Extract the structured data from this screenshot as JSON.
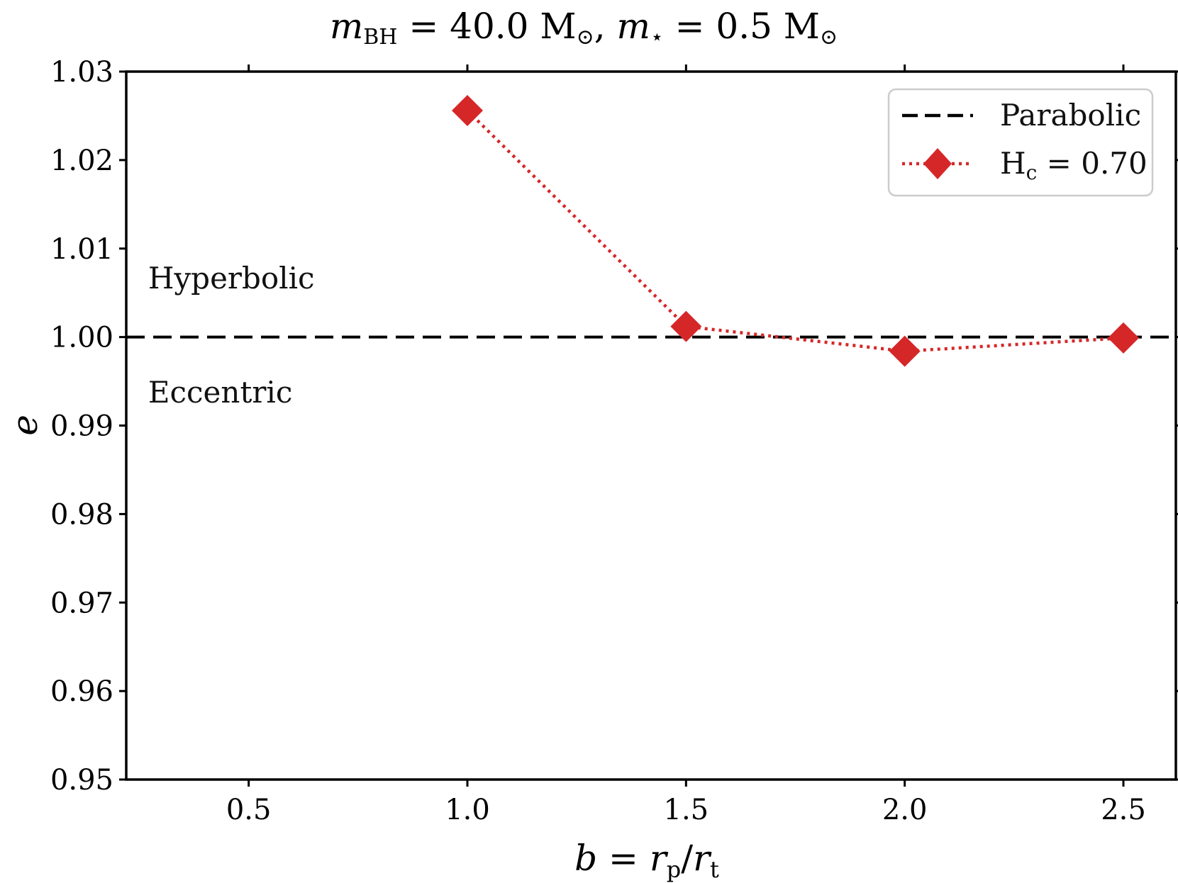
{
  "chart_data": {
    "type": "line",
    "title": {
      "m1": "m",
      "m1_sub": "BH",
      "eq1": " = 40.0 M",
      "sun1": "⊙",
      "comma": ", ",
      "m2": "m",
      "m2_sub": "⋆",
      "eq2": " = 0.5 M",
      "sun2": "⊙"
    },
    "xlabel": {
      "b": "b",
      "eq": " = ",
      "r1": "r",
      "r1_sub": "p",
      "slash": "/",
      "r2": "r",
      "r2_sub": "t"
    },
    "ylabel": "e",
    "xlim": [
      0.22,
      2.62
    ],
    "ylim": [
      0.95,
      1.03
    ],
    "x_ticks": [
      0.5,
      1.0,
      1.5,
      2.0,
      2.5
    ],
    "x_tick_labels": [
      "0.5",
      "1.0",
      "1.5",
      "2.0",
      "2.5"
    ],
    "y_ticks": [
      0.95,
      0.96,
      0.97,
      0.98,
      0.99,
      1.0,
      1.01,
      1.02,
      1.03
    ],
    "y_tick_labels": [
      "0.95",
      "0.96",
      "0.97",
      "0.98",
      "0.99",
      "1.00",
      "1.01",
      "1.02",
      "1.03"
    ],
    "reference_line": {
      "name": "Parabolic",
      "y": 1.0,
      "style": "dashed",
      "color": "#000000"
    },
    "series": [
      {
        "name": "H_c = 0.70",
        "color": "#d62728",
        "marker": "diamond",
        "linestyle": "dotted",
        "x": [
          1.0,
          1.5,
          2.0,
          2.5
        ],
        "y": [
          1.0256,
          1.0012,
          0.9984,
          0.9999
        ]
      }
    ],
    "annotations": [
      {
        "text": "Hyperbolic",
        "x": 0.27,
        "y": 1.0055
      },
      {
        "text": "Eccentric",
        "x": 0.27,
        "y": 0.9926
      }
    ],
    "legend": {
      "position": "top-right",
      "parabolic_label": "Parabolic",
      "series_label_H": "H",
      "series_label_sub": "c",
      "series_label_rest": " = 0.70"
    },
    "grid": false
  }
}
